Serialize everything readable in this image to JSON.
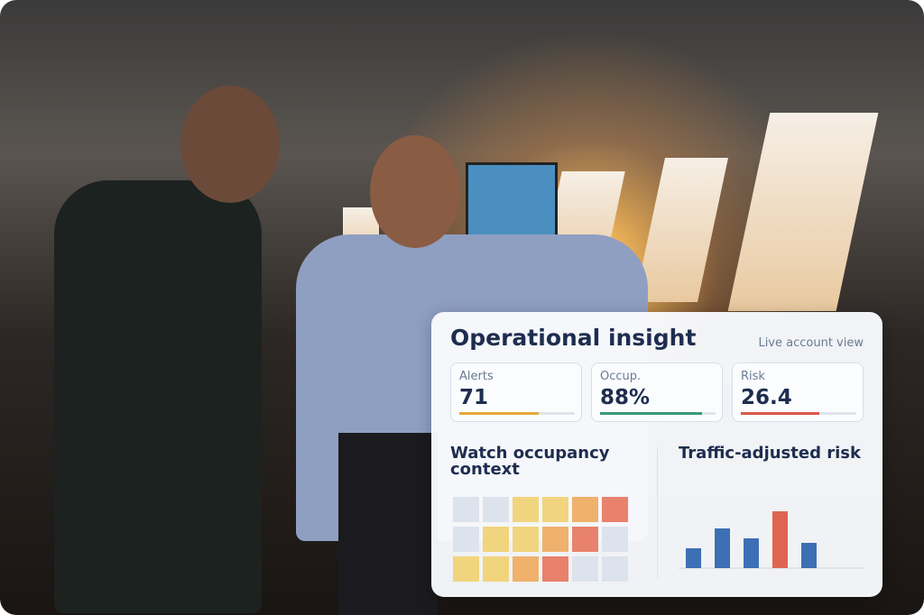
{
  "card": {
    "title": "Operational insight",
    "subtitle": "Live account view",
    "kpis": [
      {
        "label": "Alerts",
        "value": "71",
        "progress": 69,
        "color": "#e3a93a"
      },
      {
        "label": "Occup.",
        "value": "88%",
        "progress": 88,
        "color": "#3a9a78"
      },
      {
        "label": "Risk",
        "value": "26.4",
        "progress": 68,
        "color": "#d9574a"
      }
    ],
    "heatmap": {
      "title": "Watch occupancy context",
      "palette": [
        "#dde3ec",
        "#f1d47e",
        "#efb16c",
        "#e8826c"
      ],
      "rows": [
        [
          0,
          0,
          1,
          1,
          2,
          3
        ],
        [
          0,
          1,
          1,
          2,
          3,
          0
        ],
        [
          1,
          1,
          2,
          3,
          0,
          0
        ]
      ]
    },
    "bars": {
      "title": "Traffic-adjusted risk",
      "values": [
        22,
        44,
        33,
        63,
        28
      ],
      "color": "#3d6fb5",
      "highlight": 3,
      "highlight_color": "#e06452"
    }
  }
}
